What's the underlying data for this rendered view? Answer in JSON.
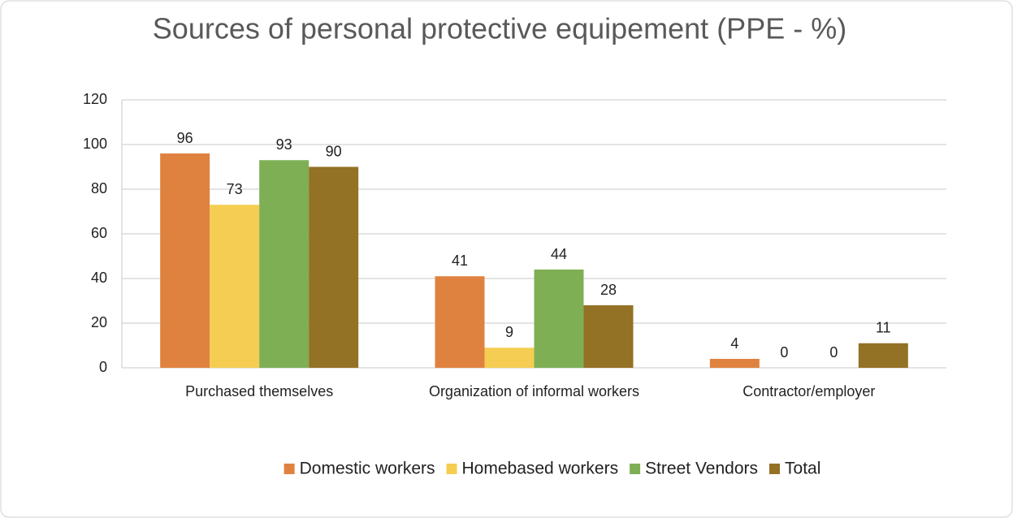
{
  "chart_data": {
    "type": "bar",
    "title": "Sources of personal protective equipement (PPE - %)",
    "categories": [
      "Purchased themselves",
      "Organization of informal workers",
      "Contractor/employer"
    ],
    "series": [
      {
        "name": "Domestic workers",
        "color": "#e0823f",
        "values": [
          96,
          41,
          4
        ]
      },
      {
        "name": "Homebased workers",
        "color": "#f5cd52",
        "values": [
          73,
          9,
          0
        ]
      },
      {
        "name": "Street Vendors",
        "color": "#7faf55",
        "values": [
          93,
          44,
          0
        ]
      },
      {
        "name": "Total",
        "color": "#937125",
        "values": [
          90,
          28,
          11
        ]
      }
    ],
    "ylim": [
      0,
      120
    ],
    "yticks": [
      0,
      20,
      40,
      60,
      80,
      100,
      120
    ],
    "grid": true,
    "legend": "bottom"
  }
}
